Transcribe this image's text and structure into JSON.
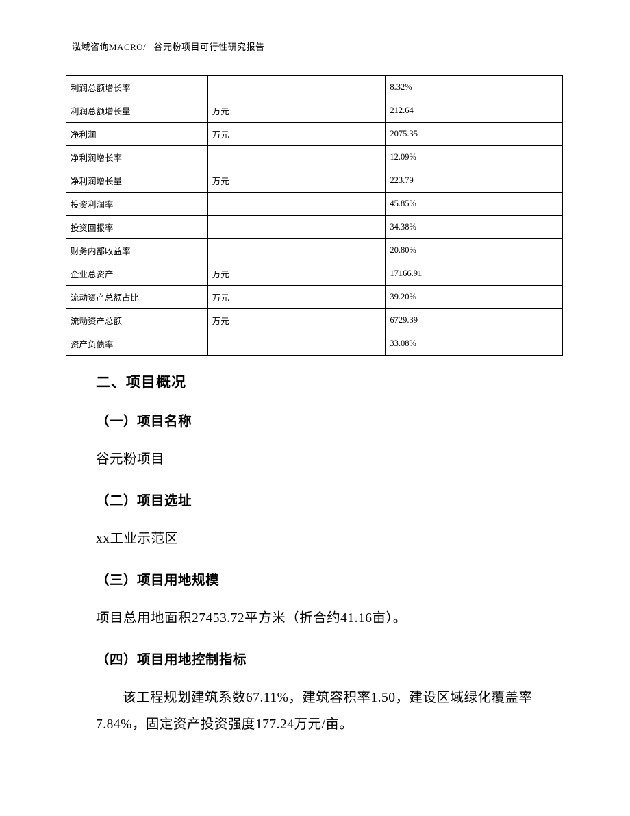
{
  "header": {
    "left": "泓域咨询MACRO/",
    "right": "谷元粉项目可行性研究报告"
  },
  "table": {
    "rows": [
      {
        "label": "利润总额增长率",
        "unit": "",
        "value": "8.32%"
      },
      {
        "label": "利润总额增长量",
        "unit": "万元",
        "value": "212.64"
      },
      {
        "label": "净利润",
        "unit": "万元",
        "value": "2075.35"
      },
      {
        "label": "净利润增长率",
        "unit": "",
        "value": "12.09%"
      },
      {
        "label": "净利润增长量",
        "unit": "万元",
        "value": "223.79"
      },
      {
        "label": "投资利润率",
        "unit": "",
        "value": "45.85%"
      },
      {
        "label": "投资回报率",
        "unit": "",
        "value": "34.38%"
      },
      {
        "label": "财务内部收益率",
        "unit": "",
        "value": "20.80%"
      },
      {
        "label": "企业总资产",
        "unit": "万元",
        "value": "17166.91"
      },
      {
        "label": "流动资产总额占比",
        "unit": "万元",
        "value": "39.20%"
      },
      {
        "label": "流动资产总额",
        "unit": "万元",
        "value": "6729.39"
      },
      {
        "label": "资产负债率",
        "unit": "",
        "value": "33.08%"
      }
    ]
  },
  "sections": {
    "h2": "二、项目概况",
    "s1_h": "（一）项目名称",
    "s1_b": "谷元粉项目",
    "s2_h": "（二）项目选址",
    "s2_b": "xx工业示范区",
    "s3_h": "（三）项目用地规模",
    "s3_b": "项目总用地面积27453.72平方米（折合约41.16亩）。",
    "s4_h": "（四）项目用地控制指标",
    "s4_b": "该工程规划建筑系数67.11%，建筑容积率1.50，建设区域绿化覆盖率7.84%，固定资产投资强度177.24万元/亩。"
  }
}
